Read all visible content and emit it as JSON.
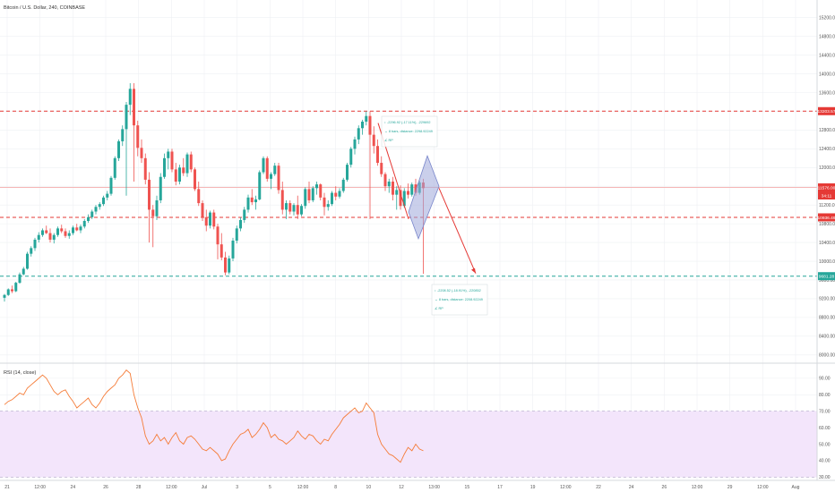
{
  "header": {
    "symbol_title": "Bitcoin / U.S. Dollar, 240, COINBASE"
  },
  "colors": {
    "up": "#26a69a",
    "down": "#ef5350",
    "hline_red": "#e53935",
    "hline_green": "#26a69a",
    "rsi_line": "#f57c38",
    "rsi_band": "#f3e5fb",
    "diamond": "#9fa8da",
    "grid": "#eef0f3",
    "tag_red": "#e53935",
    "tag_green": "#26a69a",
    "current_line": "#f5b5b5"
  },
  "chart_data": [
    {
      "type": "candlestick",
      "title": "Bitcoin / U.S. Dollar, 240, COINBASE",
      "ylim": [
        7900,
        15500
      ],
      "y_ticks": [
        8000,
        8400,
        8800,
        9200,
        9600,
        10000,
        10400,
        10800,
        11200,
        11600,
        12000,
        12400,
        12800,
        13200,
        13600,
        14000,
        14400,
        14800,
        15200
      ],
      "y_tick_labels": [
        "8000.00",
        "8400.00",
        "8800.00",
        "9200.00",
        "9600.00",
        "10000.00",
        "10400.00",
        "10800.00",
        "11200.00",
        "11600.00",
        "12000.00",
        "12400.00",
        "12800.00",
        "13200.00",
        "13600.00",
        "14000.00",
        "14400.00",
        "14800.00",
        "15200.00"
      ],
      "x_tick_labels": [
        "21",
        "12:00",
        "24",
        "26",
        "28",
        "12:00",
        "Jul",
        "3",
        "5",
        "12:00",
        "8",
        "10",
        "12",
        "13:00",
        "15",
        "17",
        "19",
        "12:00",
        "22",
        "24",
        "26",
        "12:00",
        "29",
        "12:00",
        "Aug"
      ],
      "price_tags": [
        {
          "label": "13203.57",
          "value": 13203.57,
          "kind": "red"
        },
        {
          "label": "11576.00",
          "value": 11576.0,
          "kind": "current"
        },
        {
          "label": "34:11",
          "value": 11440,
          "kind": "current_sub"
        },
        {
          "label": "10936.49",
          "value": 10936.49,
          "kind": "red"
        },
        {
          "label": "9681.28",
          "value": 9681.28,
          "kind": "green"
        }
      ],
      "horizontal_lines": [
        {
          "value": 13203.57,
          "style": "dashed",
          "color": "red"
        },
        {
          "value": 10936.49,
          "style": "dashed",
          "color": "red"
        },
        {
          "value": 9681.28,
          "style": "dashed",
          "color": "green"
        },
        {
          "value": 11576.0,
          "style": "solid",
          "color": "current"
        }
      ],
      "candles": [
        [
          9220,
          9300,
          9140,
          9280
        ],
        [
          9280,
          9420,
          9260,
          9400
        ],
        [
          9400,
          9480,
          9320,
          9360
        ],
        [
          9360,
          9560,
          9340,
          9540
        ],
        [
          9540,
          9760,
          9520,
          9720
        ],
        [
          9720,
          9880,
          9700,
          9840
        ],
        [
          9840,
          10200,
          9820,
          10160
        ],
        [
          10160,
          10320,
          10100,
          10280
        ],
        [
          10280,
          10500,
          10220,
          10460
        ],
        [
          10460,
          10620,
          10400,
          10560
        ],
        [
          10560,
          10700,
          10520,
          10660
        ],
        [
          10660,
          10760,
          10580,
          10600
        ],
        [
          10600,
          10700,
          10400,
          10460
        ],
        [
          10460,
          10600,
          10380,
          10560
        ],
        [
          10560,
          10740,
          10520,
          10700
        ],
        [
          10700,
          10780,
          10600,
          10640
        ],
        [
          10640,
          10700,
          10500,
          10540
        ],
        [
          10540,
          10660,
          10480,
          10600
        ],
        [
          10600,
          10760,
          10560,
          10720
        ],
        [
          10720,
          10800,
          10640,
          10660
        ],
        [
          10660,
          10780,
          10600,
          10740
        ],
        [
          10740,
          10900,
          10700,
          10860
        ],
        [
          10860,
          11000,
          10820,
          10940
        ],
        [
          10940,
          11100,
          10900,
          11060
        ],
        [
          11060,
          11200,
          11000,
          11160
        ],
        [
          11160,
          11260,
          11100,
          11220
        ],
        [
          11220,
          11400,
          11180,
          11360
        ],
        [
          11360,
          11500,
          11300,
          11440
        ],
        [
          11440,
          11820,
          11400,
          11780
        ],
        [
          11780,
          12240,
          11740,
          12200
        ],
        [
          12200,
          12600,
          12140,
          12560
        ],
        [
          12560,
          12900,
          12460,
          12820
        ],
        [
          12820,
          13400,
          11400,
          13340
        ],
        [
          13340,
          13800,
          13120,
          13680
        ],
        [
          13680,
          13800,
          11700,
          12900
        ],
        [
          12900,
          13000,
          12240,
          12420
        ],
        [
          12420,
          12600,
          12100,
          12200
        ],
        [
          12200,
          12300,
          11640,
          11740
        ],
        [
          11740,
          11900,
          10400,
          11100
        ],
        [
          11100,
          11200,
          10300,
          10960
        ],
        [
          10960,
          11400,
          10880,
          11300
        ],
        [
          11300,
          11880,
          11240,
          11800
        ],
        [
          11800,
          12300,
          11760,
          12200
        ],
        [
          12200,
          12400,
          11960,
          12340
        ],
        [
          12340,
          12400,
          11900,
          11960
        ],
        [
          11960,
          12100,
          11620,
          11700
        ],
        [
          11700,
          12060,
          11640,
          12000
        ],
        [
          12000,
          12200,
          11820,
          11880
        ],
        [
          11880,
          12320,
          11800,
          12280
        ],
        [
          12280,
          12340,
          11900,
          11960
        ],
        [
          11960,
          12000,
          11500,
          11540
        ],
        [
          11540,
          11700,
          11180,
          11240
        ],
        [
          11240,
          11300,
          10860,
          10940
        ],
        [
          10940,
          11100,
          10640,
          10760
        ],
        [
          10760,
          11080,
          10700,
          11040
        ],
        [
          11040,
          11100,
          10680,
          10740
        ],
        [
          10740,
          10800,
          10040,
          10360
        ],
        [
          10360,
          10600,
          10020,
          10080
        ],
        [
          10080,
          10200,
          9700,
          9760
        ],
        [
          9760,
          10120,
          9720,
          10060
        ],
        [
          10060,
          10500,
          10000,
          10440
        ],
        [
          10440,
          10760,
          10380,
          10700
        ],
        [
          10700,
          10940,
          10640,
          10880
        ],
        [
          10880,
          11160,
          10820,
          11100
        ],
        [
          11100,
          11420,
          11040,
          11360
        ],
        [
          11360,
          11540,
          11200,
          11260
        ],
        [
          11260,
          11400,
          11100,
          11320
        ],
        [
          11320,
          11940,
          11300,
          11900
        ],
        [
          11900,
          12240,
          11860,
          12200
        ],
        [
          12200,
          12240,
          11700,
          11760
        ],
        [
          11760,
          11900,
          11540,
          11860
        ],
        [
          11860,
          12100,
          11820,
          12040
        ],
        [
          12040,
          12100,
          11440,
          11520
        ],
        [
          11520,
          11700,
          11000,
          11100
        ],
        [
          11100,
          11300,
          10900,
          11240
        ],
        [
          11240,
          11300,
          11000,
          11060
        ],
        [
          11060,
          11240,
          10980,
          11200
        ],
        [
          11200,
          11400,
          10900,
          11000
        ],
        [
          11000,
          11220,
          10960,
          11180
        ],
        [
          11180,
          11580,
          11120,
          11540
        ],
        [
          11540,
          11700,
          11240,
          11300
        ],
        [
          11300,
          11600,
          11260,
          11560
        ],
        [
          11560,
          11700,
          11420,
          11640
        ],
        [
          11640,
          11660,
          11300,
          11360
        ],
        [
          11360,
          11460,
          10980,
          11160
        ],
        [
          11160,
          11300,
          11080,
          11220
        ],
        [
          11220,
          11500,
          11180,
          11460
        ],
        [
          11460,
          11600,
          11300,
          11380
        ],
        [
          11380,
          11560,
          11340,
          11500
        ],
        [
          11500,
          11780,
          11460,
          11740
        ],
        [
          11740,
          12100,
          11700,
          12060
        ],
        [
          12060,
          12440,
          12000,
          12400
        ],
        [
          12400,
          12660,
          12280,
          12600
        ],
        [
          12600,
          12900,
          12500,
          12840
        ],
        [
          12840,
          13020,
          12700,
          12980
        ],
        [
          12980,
          13200,
          12900,
          13100
        ],
        [
          13100,
          13200,
          10900,
          12700
        ],
        [
          12700,
          12880,
          12300,
          12460
        ],
        [
          12460,
          12600,
          12040,
          12100
        ],
        [
          12100,
          12240,
          11800,
          11860
        ],
        [
          11860,
          11900,
          11500,
          11600
        ],
        [
          11600,
          11760,
          11460,
          11700
        ],
        [
          11700,
          11800,
          11300,
          11420
        ],
        [
          11420,
          11600,
          11100,
          11520
        ],
        [
          11520,
          11620,
          11100,
          11180
        ],
        [
          11180,
          11560,
          11140,
          11500
        ],
        [
          11500,
          11660,
          11340,
          11420
        ],
        [
          11420,
          11680,
          11380,
          11640
        ],
        [
          11640,
          11760,
          11400,
          11460
        ],
        [
          11460,
          11720,
          11420,
          11680
        ],
        [
          11680,
          11760,
          9730,
          11560
        ]
      ],
      "annotations": [
        {
          "line1": "-2296.92 (-17.11%), -229692",
          "line2": "8 bars, distance: 2298.92249",
          "line3": "RP"
        },
        {
          "line1": "-2208.52 (-18.91%), -220852",
          "line2": "8 bars, distance: 2208.92249",
          "line3": "RP"
        }
      ]
    },
    {
      "type": "line",
      "title": "RSI (14, close)",
      "ylim": [
        28,
        97
      ],
      "y_ticks": [
        30,
        40,
        50,
        60,
        70,
        80,
        90
      ],
      "y_tick_labels": [
        "30.00",
        "40.00",
        "50.00",
        "60.00",
        "70.00",
        "80.00",
        "90.00"
      ],
      "band": [
        30,
        70
      ],
      "series": [
        {
          "values": [
            74,
            76,
            77,
            79,
            81,
            80,
            84,
            86,
            88,
            90,
            92,
            90,
            86,
            82,
            80,
            82,
            83,
            79,
            76,
            72,
            74,
            76,
            78,
            74,
            72,
            75,
            79,
            82,
            84,
            86,
            90,
            92,
            95,
            93,
            80,
            72,
            66,
            55,
            50,
            52,
            56,
            52,
            54,
            50,
            54,
            57,
            52,
            50,
            54,
            55,
            53,
            50,
            47,
            46,
            48,
            46,
            44,
            40,
            41,
            46,
            50,
            53,
            56,
            57,
            59,
            54,
            56,
            59,
            63,
            60,
            54,
            56,
            53,
            52,
            50,
            52,
            54,
            58,
            55,
            53,
            56,
            55,
            52,
            50,
            53,
            52,
            56,
            59,
            62,
            66,
            68,
            70,
            72,
            69,
            70,
            75,
            72,
            69,
            56,
            50,
            47,
            44,
            43,
            41,
            39,
            44,
            48,
            46,
            50,
            47,
            46
          ]
        }
      ]
    }
  ]
}
